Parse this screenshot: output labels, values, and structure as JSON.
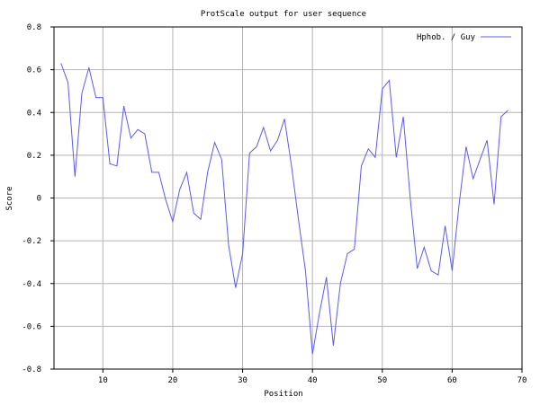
{
  "chart_data": {
    "type": "line",
    "title": "ProtScale output for user sequence",
    "xlabel": "Position",
    "ylabel": "Score",
    "xlim": [
      3,
      70
    ],
    "ylim": [
      -0.8,
      0.8
    ],
    "xticks": [
      10,
      20,
      30,
      40,
      50,
      60,
      70
    ],
    "yticks": [
      -0.8,
      -0.6,
      -0.4,
      -0.2,
      0,
      0.2,
      0.4,
      0.6,
      0.8
    ],
    "ytick_labels": [
      "-0.8",
      "-0.6",
      "-0.4",
      "-0.2",
      "0",
      "0.2",
      "0.4",
      "0.6",
      "0.8"
    ],
    "grid": true,
    "legend_position": "top-right",
    "line_color": "#5b5bf0",
    "series": [
      {
        "name": "Hphob. / Guy",
        "x": [
          4,
          5,
          6,
          7,
          8,
          9,
          10,
          11,
          12,
          13,
          14,
          15,
          16,
          17,
          18,
          19,
          20,
          21,
          22,
          23,
          24,
          25,
          26,
          27,
          28,
          29,
          30,
          31,
          32,
          33,
          34,
          35,
          36,
          37,
          38,
          39,
          40,
          41,
          42,
          43,
          44,
          45,
          46,
          47,
          48,
          49,
          50,
          51,
          52,
          53,
          54,
          55,
          56,
          57,
          58,
          59,
          60,
          61,
          62,
          63,
          64,
          65,
          66,
          67,
          68
        ],
        "y": [
          0.63,
          0.54,
          0.1,
          0.49,
          0.61,
          0.47,
          0.47,
          0.16,
          0.15,
          0.43,
          0.28,
          0.32,
          0.3,
          0.12,
          0.12,
          -0.01,
          -0.11,
          0.04,
          0.12,
          -0.07,
          -0.1,
          0.12,
          0.26,
          0.18,
          -0.22,
          -0.42,
          -0.26,
          0.21,
          0.24,
          0.33,
          0.22,
          0.27,
          0.37,
          0.15,
          -0.1,
          -0.34,
          -0.73,
          -0.54,
          -0.37,
          -0.69,
          -0.4,
          -0.26,
          -0.24,
          0.15,
          0.23,
          0.19,
          0.51,
          0.55,
          0.19,
          0.38,
          0.0,
          -0.33,
          -0.23,
          -0.34,
          -0.36,
          -0.13,
          -0.34,
          -0.03,
          0.24,
          0.09,
          0.18,
          0.27,
          -0.03,
          0.38,
          0.41
        ]
      }
    ]
  }
}
